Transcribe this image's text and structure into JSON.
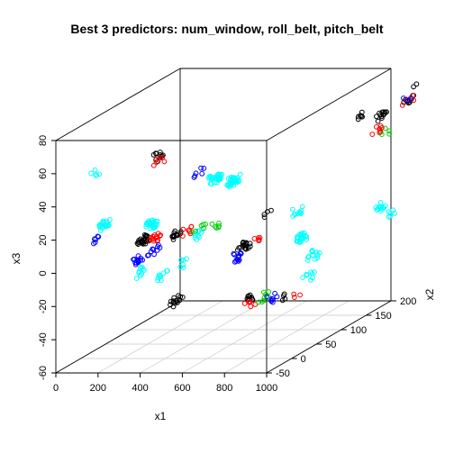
{
  "chart_data": {
    "type": "scatter3d",
    "title": "Best 3 predictors: num_window, roll_belt, pitch_belt",
    "xlabel": "x1",
    "ylabel": "x2",
    "zlabel": "x3",
    "xlim": [
      0,
      1000
    ],
    "ylim": [
      -50,
      200
    ],
    "zlim": [
      -60,
      80
    ],
    "x_ticks": [
      "0",
      "200",
      "400",
      "600",
      "800",
      "1000"
    ],
    "y_ticks": [
      "-50",
      "0",
      "50",
      "100",
      "150",
      "200"
    ],
    "z_ticks": [
      "-60",
      "-40",
      "-20",
      "0",
      "20",
      "40",
      "60",
      "80"
    ],
    "grid": true,
    "colors": {
      "black": "#000000",
      "red": "#ff0000",
      "green": "#00cd00",
      "blue": "#0000ff",
      "cyan": "#00ffff"
    },
    "clusters": [
      {
        "x": 75,
        "y": 110,
        "z": 2,
        "n": 35,
        "color": "cyan"
      },
      {
        "x": 45,
        "y": 30,
        "z": 15,
        "n": 22,
        "color": "cyan"
      },
      {
        "x": 60,
        "y": 5,
        "z": 50,
        "n": 5,
        "color": "cyan"
      },
      {
        "x": 120,
        "y": -20,
        "z": 16,
        "n": 6,
        "color": "blue"
      },
      {
        "x": 340,
        "y": 10,
        "z": 60,
        "n": 10,
        "color": "black"
      },
      {
        "x": 360,
        "y": 5,
        "z": 58,
        "n": 6,
        "color": "red"
      },
      {
        "x": 490,
        "y": 30,
        "z": 47,
        "n": 6,
        "color": "blue"
      },
      {
        "x": 500,
        "y": 60,
        "z": 38,
        "n": 30,
        "color": "cyan"
      },
      {
        "x": 560,
        "y": 70,
        "z": 35,
        "n": 35,
        "color": "cyan"
      },
      {
        "x": 480,
        "y": 30,
        "z": 10,
        "n": 10,
        "color": "cyan"
      },
      {
        "x": 250,
        "y": 20,
        "z": 8,
        "n": 28,
        "color": "black"
      },
      {
        "x": 300,
        "y": 20,
        "z": 8,
        "n": 14,
        "color": "red"
      },
      {
        "x": 380,
        "y": 30,
        "z": 9,
        "n": 14,
        "color": "black"
      },
      {
        "x": 420,
        "y": 40,
        "z": 10,
        "n": 8,
        "color": "red"
      },
      {
        "x": 470,
        "y": 40,
        "z": 11,
        "n": 6,
        "color": "green"
      },
      {
        "x": 530,
        "y": 50,
        "z": 12,
        "n": 6,
        "color": "green"
      },
      {
        "x": 270,
        "y": 0,
        "z": 0,
        "n": 14,
        "color": "blue"
      },
      {
        "x": 330,
        "y": 10,
        "z": 4,
        "n": 10,
        "color": "blue"
      },
      {
        "x": 290,
        "y": 0,
        "z": -8,
        "n": 10,
        "color": "cyan"
      },
      {
        "x": 360,
        "y": 10,
        "z": -12,
        "n": 10,
        "color": "cyan"
      },
      {
        "x": 440,
        "y": 20,
        "z": -6,
        "n": 6,
        "color": "cyan"
      },
      {
        "x": 450,
        "y": 0,
        "z": -25,
        "n": 14,
        "color": "black"
      },
      {
        "x": 690,
        "y": 80,
        "z": 12,
        "n": 4,
        "color": "black"
      },
      {
        "x": 800,
        "y": -10,
        "z": 10,
        "n": 18,
        "color": "black"
      },
      {
        "x": 840,
        "y": 0,
        "z": 11,
        "n": 6,
        "color": "red"
      },
      {
        "x": 790,
        "y": -20,
        "z": 5,
        "n": 14,
        "color": "blue"
      },
      {
        "x": 840,
        "y": 80,
        "z": 15,
        "n": 10,
        "color": "cyan"
      },
      {
        "x": 900,
        "y": 60,
        "z": 2,
        "n": 22,
        "color": "cyan"
      },
      {
        "x": 990,
        "y": 50,
        "z": -6,
        "n": 12,
        "color": "cyan"
      },
      {
        "x": 880,
        "y": -30,
        "z": -18,
        "n": 10,
        "color": "black"
      },
      {
        "x": 870,
        "y": -30,
        "z": -22,
        "n": 6,
        "color": "red"
      },
      {
        "x": 920,
        "y": -20,
        "z": -19,
        "n": 8,
        "color": "green"
      },
      {
        "x": 960,
        "y": -20,
        "z": -20,
        "n": 8,
        "color": "blue"
      },
      {
        "x": 1000,
        "y": -10,
        "z": -20,
        "n": 4,
        "color": "black"
      },
      {
        "x": 1010,
        "y": 0,
        "z": -22,
        "n": 3,
        "color": "red"
      },
      {
        "x": 990,
        "y": 40,
        "z": -18,
        "n": 8,
        "color": "cyan"
      },
      {
        "x": 1000,
        "y": 180,
        "z": 0,
        "n": 12,
        "color": "cyan"
      },
      {
        "x": 1020,
        "y": 190,
        "z": -6,
        "n": 6,
        "color": "cyan"
      },
      {
        "x": 1000,
        "y": 180,
        "z": 55,
        "n": 12,
        "color": "black"
      },
      {
        "x": 1010,
        "y": 170,
        "z": 48,
        "n": 8,
        "color": "red"
      },
      {
        "x": 1030,
        "y": 175,
        "z": 46,
        "n": 4,
        "color": "green"
      },
      {
        "x": 1080,
        "y": 200,
        "z": 60,
        "n": 8,
        "color": "black"
      },
      {
        "x": 1090,
        "y": 200,
        "z": 61,
        "n": 4,
        "color": "red"
      },
      {
        "x": 1080,
        "y": 200,
        "z": 62,
        "n": 3,
        "color": "blue"
      },
      {
        "x": 1000,
        "y": 140,
        "z": 62,
        "n": 6,
        "color": "black"
      },
      {
        "x": 1100,
        "y": 200,
        "z": 70,
        "n": 2,
        "color": "black"
      }
    ]
  }
}
